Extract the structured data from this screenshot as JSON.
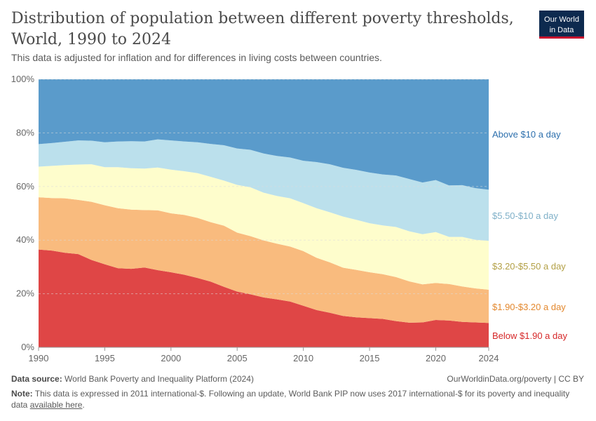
{
  "header": {
    "title": "Distribution of population between different poverty thresholds, World, 1990 to 2024",
    "subtitle": "This data is adjusted for inflation and for differences in living costs between countries.",
    "logo_line1": "Our World",
    "logo_line2": "in Data"
  },
  "footer": {
    "source_label": "Data source:",
    "source_text": "World Bank Poverty and Inequality Platform (2024)",
    "license": "OurWorldinData.org/poverty | CC BY",
    "note_label": "Note:",
    "note_text": "This data is expressed in 2011 international-$. Following an update, World Bank PIP now uses 2017 international-$ for its poverty and inequality data",
    "note_link": "available here",
    "note_end": "."
  },
  "chart_data": {
    "type": "area",
    "stacked": true,
    "x": [
      1990,
      1991,
      1992,
      1993,
      1994,
      1995,
      1996,
      1997,
      1998,
      1999,
      2000,
      2001,
      2002,
      2003,
      2004,
      2005,
      2006,
      2007,
      2008,
      2009,
      2010,
      2011,
      2012,
      2013,
      2014,
      2015,
      2016,
      2017,
      2018,
      2019,
      2020,
      2021,
      2022,
      2023,
      2024
    ],
    "ylim": [
      0,
      100
    ],
    "yticks": [
      "0%",
      "20%",
      "40%",
      "60%",
      "80%",
      "100%"
    ],
    "yticks_values": [
      0,
      20,
      40,
      60,
      80,
      100
    ],
    "xticks": [
      "1990",
      "1995",
      "2000",
      "2005",
      "2010",
      "2015",
      "2020",
      "2024"
    ],
    "xticks_values": [
      1990,
      1995,
      2000,
      2005,
      2010,
      2015,
      2020,
      2024
    ],
    "grid": true,
    "series": [
      {
        "name": "Below $1.90 a day",
        "color": "#df4646",
        "values": [
          36.5,
          36.1,
          35.3,
          34.8,
          32.6,
          31.0,
          29.5,
          29.3,
          29.8,
          28.8,
          28.0,
          27.1,
          25.9,
          24.5,
          22.6,
          20.8,
          19.8,
          18.6,
          17.9,
          17.1,
          15.5,
          13.9,
          12.9,
          11.7,
          11.2,
          10.9,
          10.6,
          9.8,
          9.2,
          9.3,
          10.2,
          10.0,
          9.5,
          9.3,
          9.1
        ]
      },
      {
        "name": "$1.90-$3.20 a day",
        "color": "#f9bb7e",
        "values": [
          19.5,
          19.6,
          20.3,
          20.2,
          21.7,
          22.0,
          22.4,
          22.1,
          21.4,
          22.3,
          22.0,
          22.3,
          22.4,
          22.2,
          22.8,
          22.0,
          21.7,
          21.3,
          20.8,
          20.5,
          20.4,
          19.5,
          18.8,
          18.0,
          17.7,
          17.1,
          16.7,
          16.4,
          15.4,
          14.2,
          13.8,
          13.6,
          13.2,
          12.7,
          12.4
        ]
      },
      {
        "name": "$3.20-$5.50 a day",
        "color": "#fefdcc",
        "values": [
          11.4,
          12.0,
          12.4,
          13.2,
          14.0,
          14.2,
          15.3,
          15.4,
          15.5,
          16.0,
          16.3,
          16.3,
          16.7,
          16.9,
          16.8,
          17.8,
          18.2,
          17.8,
          17.8,
          18.0,
          17.9,
          18.5,
          18.7,
          19.1,
          18.7,
          18.3,
          18.2,
          18.7,
          18.7,
          18.7,
          19.0,
          17.6,
          18.5,
          18.1,
          18.2
        ]
      },
      {
        "name": "$5.50-$10 a day",
        "color": "#bbe0ec",
        "values": [
          8.4,
          8.5,
          8.7,
          9.0,
          8.8,
          9.3,
          9.6,
          10.1,
          10.1,
          10.5,
          10.9,
          11.1,
          11.5,
          12.3,
          13.2,
          13.6,
          14.0,
          14.6,
          14.9,
          15.2,
          15.8,
          17.2,
          17.9,
          18.2,
          18.6,
          18.9,
          19.0,
          19.2,
          19.5,
          19.3,
          19.4,
          19.2,
          19.3,
          19.3,
          19.1
        ]
      },
      {
        "name": "Above $10 a day",
        "color": "#5a9bcb",
        "values": [
          24.2,
          23.8,
          23.3,
          22.8,
          22.9,
          23.5,
          23.2,
          23.1,
          23.2,
          22.4,
          22.8,
          23.2,
          23.5,
          24.1,
          24.6,
          25.8,
          26.3,
          27.7,
          28.6,
          29.2,
          30.4,
          30.9,
          31.7,
          33.0,
          33.8,
          34.8,
          35.5,
          35.9,
          37.2,
          38.5,
          37.6,
          39.6,
          39.5,
          40.6,
          41.2
        ]
      }
    ],
    "label_colors": [
      "#d62728",
      "#e3882e",
      "#b3a046",
      "#7fb0c8",
      "#2c6fad"
    ]
  }
}
